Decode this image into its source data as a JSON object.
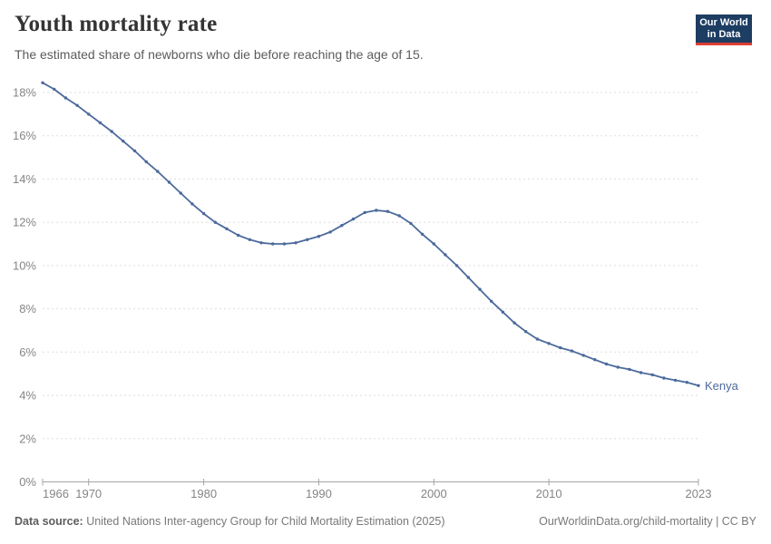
{
  "header": {
    "title": "Youth mortality rate",
    "subtitle": "The estimated share of newborns who die before reaching the age of 15.",
    "logo": {
      "line1": "Our World",
      "line2": "in Data",
      "bg_color": "#1d3d63",
      "bar_color": "#dc3e32"
    }
  },
  "chart_data": {
    "type": "line",
    "title": "Youth mortality rate",
    "xlabel": "",
    "ylabel": "",
    "xlim": [
      1966,
      2023
    ],
    "ylim": [
      0,
      18
    ],
    "grid": "horizontal-dashed",
    "legend_position": "end-of-line",
    "x_ticks": [
      {
        "value": 1966,
        "label": "1966"
      },
      {
        "value": 1970,
        "label": "1970"
      },
      {
        "value": 1980,
        "label": "1980"
      },
      {
        "value": 1990,
        "label": "1990"
      },
      {
        "value": 2000,
        "label": "2000"
      },
      {
        "value": 2010,
        "label": "2010"
      },
      {
        "value": 2023,
        "label": "2023"
      }
    ],
    "y_ticks": [
      {
        "value": 0,
        "label": "0%"
      },
      {
        "value": 2,
        "label": "2%"
      },
      {
        "value": 4,
        "label": "4%"
      },
      {
        "value": 6,
        "label": "6%"
      },
      {
        "value": 8,
        "label": "8%"
      },
      {
        "value": 10,
        "label": "10%"
      },
      {
        "value": 12,
        "label": "12%"
      },
      {
        "value": 14,
        "label": "14%"
      },
      {
        "value": 16,
        "label": "16%"
      },
      {
        "value": 18,
        "label": "18%"
      }
    ],
    "series": [
      {
        "name": "Kenya",
        "color": "#4c6a9c",
        "unit": "%",
        "x": [
          1966,
          1967,
          1968,
          1969,
          1970,
          1971,
          1972,
          1973,
          1974,
          1975,
          1976,
          1977,
          1978,
          1979,
          1980,
          1981,
          1982,
          1983,
          1984,
          1985,
          1986,
          1987,
          1988,
          1989,
          1990,
          1991,
          1992,
          1993,
          1994,
          1995,
          1996,
          1997,
          1998,
          1999,
          2000,
          2001,
          2002,
          2003,
          2004,
          2005,
          2006,
          2007,
          2008,
          2009,
          2010,
          2011,
          2012,
          2013,
          2014,
          2015,
          2016,
          2017,
          2018,
          2019,
          2020,
          2021,
          2022,
          2023
        ],
        "values": [
          18.45,
          18.15,
          17.75,
          17.4,
          17.0,
          16.6,
          16.2,
          15.75,
          15.3,
          14.8,
          14.35,
          13.85,
          13.35,
          12.85,
          12.4,
          12.0,
          11.7,
          11.4,
          11.2,
          11.05,
          11.0,
          11.0,
          11.05,
          11.2,
          11.35,
          11.55,
          11.85,
          12.15,
          12.45,
          12.55,
          12.5,
          12.3,
          11.95,
          11.45,
          11.0,
          10.5,
          10.0,
          9.45,
          8.9,
          8.35,
          7.85,
          7.35,
          6.95,
          6.6,
          6.4,
          6.2,
          6.05,
          5.85,
          5.65,
          5.45,
          5.3,
          5.2,
          5.05,
          4.95,
          4.8,
          4.7,
          4.6,
          4.45
        ]
      }
    ]
  },
  "footer": {
    "source_label": "Data source:",
    "source_text": " United Nations Inter-agency Group for Child Mortality Estimation (2025)",
    "credit": "OurWorldinData.org/child-mortality | CC BY"
  }
}
